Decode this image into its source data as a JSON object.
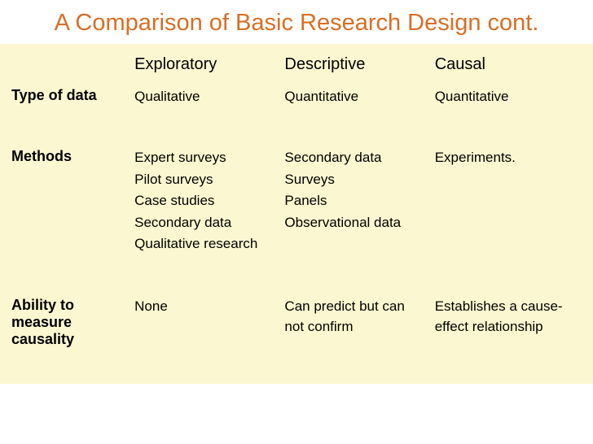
{
  "title": "A Comparison of Basic Research Design cont.",
  "title_color": "#d96e24",
  "table_bg": "#fbf8d1",
  "text_color": "#000000",
  "columns": [
    "Exploratory",
    "Descriptive",
    "Causal"
  ],
  "rows": {
    "type_of_data": {
      "label": "Type of data",
      "cells": [
        "Qualitative",
        "Quantitative",
        "Quantitative"
      ]
    },
    "methods": {
      "label": "Methods",
      "cells": [
        [
          "Expert surveys",
          "Pilot surveys",
          "Case studies",
          "Secondary data",
          "Qualitative research"
        ],
        [
          "Secondary data",
          "Surveys",
          "Panels",
          "Observational data"
        ],
        [
          "Experiments."
        ]
      ]
    },
    "ability": {
      "label": "Ability to measure causality",
      "cells": [
        "None",
        "Can predict but can not confirm",
        "Establishes a cause-effect relationship"
      ]
    }
  },
  "fonts": {
    "title_size": 29,
    "col_header_size": 20,
    "row_header_size": 18,
    "cell_size": 17
  }
}
